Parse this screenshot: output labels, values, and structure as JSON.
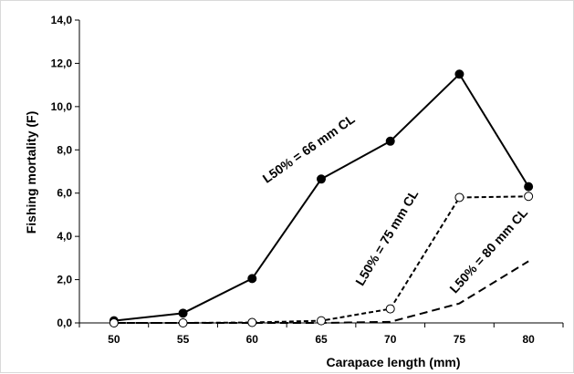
{
  "chart_data": {
    "type": "line",
    "title": "",
    "xlabel": "Carapace length (mm)",
    "ylabel": "Fishing mortality (F)",
    "x": [
      50,
      55,
      60,
      65,
      70,
      75,
      80
    ],
    "xlim": [
      47.5,
      82.5
    ],
    "ylim": [
      0,
      14
    ],
    "yticks": [
      "0,0",
      "2,0",
      "4,0",
      "6,0",
      "8,0",
      "10,0",
      "12,0",
      "14,0"
    ],
    "ytick_values": [
      0,
      2,
      4,
      6,
      8,
      10,
      12,
      14
    ],
    "xticks": [
      "50",
      "55",
      "60",
      "65",
      "70",
      "75",
      "80"
    ],
    "grid": false,
    "legend": "none",
    "series": [
      {
        "values": [
          0.1,
          0.45,
          2.05,
          6.65,
          8.4,
          11.5,
          6.3
        ],
        "line_style": "solid",
        "marker": "filled-circle",
        "color": "#000000"
      },
      {
        "values": [
          0.0,
          0.0,
          0.02,
          0.1,
          0.65,
          5.8,
          5.85
        ],
        "line_style": "dashed",
        "marker": "open-circle",
        "color": "#000000"
      },
      {
        "values": [
          0.0,
          0.0,
          0.0,
          0.0,
          0.05,
          0.9,
          2.85
        ],
        "line_style": "long-dashed",
        "marker": "none",
        "color": "#000000"
      }
    ],
    "annotations": [
      "L50% = 66 mm CL",
      "L50% = 75 mm CL",
      "L50% = 80 mm CL"
    ]
  }
}
